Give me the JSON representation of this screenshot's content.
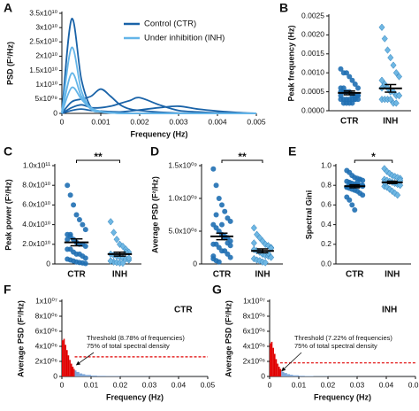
{
  "chart_data": [
    {
      "type": "line",
      "panel": "A",
      "y_label": "PSD (F²/Hz)",
      "x_label": "Frequency (Hz)",
      "legend": "upper right",
      "x": [
        0,
        0.00025,
        0.0005,
        0.00075,
        0.001,
        0.00125,
        0.0015,
        0.00175,
        0.002,
        0.0025,
        0.003,
        0.0035,
        0.004,
        0.0045,
        0.005
      ],
      "xlim": [
        0,
        0.005
      ],
      "xticks": [
        0,
        0.001,
        0.002,
        0.003,
        0.004,
        0.005
      ],
      "ylim": [
        0,
        35000000000
      ],
      "yticks": [
        0,
        {
          "value": 5000000000,
          "label": "5x10⁰⁹"
        },
        {
          "value": 10000000000,
          "label": "1x10¹⁰"
        },
        {
          "value": 15000000000,
          "label": "1.5x10¹⁰"
        },
        {
          "value": 20000000000,
          "label": "2x10¹⁰"
        },
        {
          "value": 25000000000,
          "label": "2.5x10¹⁰"
        },
        {
          "value": 30000000000,
          "label": "3x10¹⁰"
        },
        {
          "value": 35000000000,
          "label": "3.5x10¹⁰"
        }
      ],
      "series": [
        {
          "name": "Control (CTR)",
          "color": "#1a63a8",
          "values": [
            [
              0,
              33000000000,
              12000000000,
              2000000000,
              500000000,
              200000000,
              100000000,
              0,
              0,
              0,
              0,
              0,
              0,
              0,
              0
            ],
            [
              0,
              4000000000,
              5000000000,
              6000000000,
              8500000000,
              6000000000,
              3000000000,
              1500000000,
              1000000000,
              400000000,
              100000000,
              0,
              0,
              0,
              0
            ],
            [
              0,
              2000000000,
              3000000000,
              2000000000,
              2000000000,
              2500000000,
              3500000000,
              4500000000,
              5500000000,
              3000000000,
              1000000000,
              500000000,
              200000000,
              100000000,
              0
            ],
            [
              0,
              1000000000,
              1500000000,
              1000000000,
              800000000,
              600000000,
              500000000,
              800000000,
              1200000000,
              2000000000,
              2500000000,
              1500000000,
              800000000,
              300000000,
              0
            ]
          ]
        },
        {
          "name": "Under inhibition (INH)",
          "color": "#64b5e8",
          "values": [
            [
              0,
              23000000000,
              8000000000,
              1500000000,
              500000000,
              200000000,
              0,
              0,
              0,
              0,
              0,
              0,
              0,
              0,
              0
            ],
            [
              0,
              14000000000,
              6000000000,
              2000000000,
              700000000,
              300000000,
              100000000,
              0,
              0,
              0,
              0,
              0,
              0,
              0,
              0
            ],
            [
              0,
              9000000000,
              5000000000,
              1500000000,
              600000000,
              200000000,
              0,
              0,
              0,
              0,
              0,
              0,
              0,
              0,
              0
            ]
          ]
        }
      ]
    },
    {
      "type": "strip",
      "panel": "B",
      "y_label": "Peak frequency (Hz)",
      "ylim": [
        0,
        0.0025
      ],
      "yticks": [
        {
          "value": 0,
          "label": "0.0000"
        },
        {
          "value": 0.0005,
          "label": "0.0005"
        },
        {
          "value": 0.001,
          "label": "0.0010"
        },
        {
          "value": 0.0015,
          "label": "0.0015"
        },
        {
          "value": 0.002,
          "label": "0.0020"
        },
        {
          "value": 0.0025,
          "label": "0.0025"
        }
      ],
      "groups": [
        {
          "name": "CTR",
          "color": "#1f6fb2",
          "marker": "circle",
          "mean": 0.00047,
          "sem": 5e-05,
          "values": [
            0.0011,
            0.001,
            0.001,
            0.0009,
            0.0008,
            0.0007,
            0.0006,
            0.0006,
            0.0005,
            0.0005,
            0.0005,
            0.0004,
            0.0004,
            0.0004,
            0.0004,
            0.0003,
            0.0003,
            0.0003,
            0.0003,
            0.0003,
            0.0003,
            0.0003,
            0.0002,
            0.0002,
            0.0002,
            0.0002,
            0.0003,
            0.0004,
            0.0005,
            0.0006
          ]
        },
        {
          "name": "INH",
          "color": "#6fb7e3",
          "marker": "diamond",
          "mean": 0.00059,
          "sem": 0.0001,
          "values": [
            0.0022,
            0.0019,
            0.0016,
            0.0014,
            0.0012,
            0.001,
            0.0009,
            0.0008,
            0.0007,
            0.0006,
            0.0005,
            0.0005,
            0.0004,
            0.0004,
            0.0003,
            0.0003,
            0.0003,
            0.0003,
            0.0002,
            0.0002,
            0.0004,
            0.0006
          ]
        }
      ]
    },
    {
      "type": "strip",
      "panel": "C",
      "y_label": "Peak power (F²/Hz)",
      "significance": "**",
      "ylim": [
        0,
        100000000000
      ],
      "yticks": [
        0,
        {
          "value": 20000000000,
          "label": "2.0x10¹⁰"
        },
        {
          "value": 40000000000,
          "label": "4.0x10¹⁰"
        },
        {
          "value": 60000000000,
          "label": "6.0x10¹⁰"
        },
        {
          "value": 80000000000,
          "label": "8.0x10¹⁰"
        },
        {
          "value": 100000000000,
          "label": "1.0x10¹¹"
        }
      ],
      "groups": [
        {
          "name": "CTR",
          "color": "#1f6fb2",
          "marker": "circle",
          "mean": 22000000000,
          "sem": 3500000000,
          "values": [
            80000000000,
            70000000000,
            60000000000,
            50000000000,
            45000000000,
            40000000000,
            35000000000,
            30000000000,
            30000000000,
            25000000000,
            22000000000,
            20000000000,
            20000000000,
            18000000000,
            15000000000,
            15000000000,
            12000000000,
            10000000000,
            10000000000,
            8000000000,
            6000000000,
            5000000000,
            4000000000,
            3000000000,
            2000000000,
            1500000000,
            1000000000,
            500000000,
            25000000000,
            28000000000
          ]
        },
        {
          "name": "INH",
          "color": "#6fb7e3",
          "marker": "diamond",
          "mean": 10000000000,
          "sem": 2000000000,
          "values": [
            43000000000,
            32000000000,
            25000000000,
            20000000000,
            18000000000,
            15000000000,
            12000000000,
            10000000000,
            9000000000,
            8000000000,
            7000000000,
            6000000000,
            5000000000,
            4000000000,
            3000000000,
            2000000000,
            1500000000,
            1000000000,
            800000000,
            12000000000,
            6000000000,
            3000000000
          ]
        }
      ]
    },
    {
      "type": "strip",
      "panel": "D",
      "y_label": "Average PSD (F²/Hz)",
      "significance": "**",
      "ylim": [
        0,
        1500000000
      ],
      "yticks": [
        0,
        {
          "value": 500000000,
          "label": "5.0x10⁰⁸"
        },
        {
          "value": 1000000000,
          "label": "1.0x10⁰⁹"
        },
        {
          "value": 1500000000,
          "label": "1.5x10⁰⁹"
        }
      ],
      "groups": [
        {
          "name": "CTR",
          "color": "#1f6fb2",
          "marker": "circle",
          "mean": 420000000,
          "sem": 50000000,
          "values": [
            1450000000,
            1200000000,
            1000000000,
            900000000,
            800000000,
            700000000,
            650000000,
            600000000,
            550000000,
            500000000,
            450000000,
            400000000,
            400000000,
            350000000,
            300000000,
            300000000,
            250000000,
            200000000,
            200000000,
            150000000,
            100000000,
            80000000,
            50000000,
            30000000,
            600000000,
            420000000,
            320000000,
            280000000,
            120000000,
            750000000
          ]
        },
        {
          "name": "INH",
          "color": "#6fb7e3",
          "marker": "diamond",
          "mean": 200000000,
          "sem": 30000000,
          "values": [
            550000000,
            450000000,
            400000000,
            350000000,
            300000000,
            280000000,
            250000000,
            220000000,
            200000000,
            180000000,
            150000000,
            130000000,
            120000000,
            100000000,
            80000000,
            60000000,
            50000000,
            30000000,
            20000000,
            160000000,
            240000000,
            320000000
          ]
        }
      ]
    },
    {
      "type": "strip",
      "panel": "E",
      "y_label": "Spectral Gini",
      "significance": "*",
      "ylim": [
        0,
        1
      ],
      "yticks": [
        {
          "value": 0,
          "label": "0.0"
        },
        0.2,
        0.4,
        0.6,
        0.8,
        {
          "value": 1,
          "label": "1.0"
        }
      ],
      "groups": [
        {
          "name": "CTR",
          "color": "#1f6fb2",
          "marker": "circle",
          "mean": 0.79,
          "sem": 0.015,
          "values": [
            0.95,
            0.93,
            0.9,
            0.88,
            0.87,
            0.86,
            0.85,
            0.84,
            0.83,
            0.82,
            0.81,
            0.8,
            0.8,
            0.79,
            0.78,
            0.77,
            0.76,
            0.75,
            0.74,
            0.72,
            0.7,
            0.68,
            0.65,
            0.6,
            0.55,
            0.83,
            0.86,
            0.8,
            0.78,
            0.82
          ]
        },
        {
          "name": "INH",
          "color": "#6fb7e3",
          "marker": "diamond",
          "mean": 0.83,
          "sem": 0.012,
          "values": [
            0.97,
            0.94,
            0.92,
            0.9,
            0.89,
            0.88,
            0.87,
            0.86,
            0.85,
            0.84,
            0.83,
            0.82,
            0.81,
            0.8,
            0.79,
            0.78,
            0.76,
            0.74,
            0.72,
            0.7,
            0.85,
            0.83
          ]
        }
      ]
    },
    {
      "type": "spectrum",
      "panel": "F",
      "label": "CTR",
      "y_label": "Average PSD (F²/Hz)",
      "x_label": "Frequency (Hz)",
      "annotation": [
        "Threshold (8.78% of frequencies)",
        "75% of total spectral density"
      ],
      "threshold_x": 0.0044,
      "threshold_y": 2600000,
      "colors": [
        "#e00000",
        "#7ea6d8"
      ],
      "threshold_color": "#e00000",
      "xlim": [
        0,
        0.05
      ],
      "xticks": [
        0,
        0.01,
        0.02,
        0.03,
        0.04,
        0.05
      ],
      "ylim": [
        0,
        10000000
      ],
      "yticks": [
        0,
        {
          "value": 2000000,
          "label": "2x10⁰⁶"
        },
        {
          "value": 4000000,
          "label": "4x10⁰⁶"
        },
        {
          "value": 6000000,
          "label": "6x10⁰⁶"
        },
        {
          "value": 8000000,
          "label": "8x10⁰⁶"
        },
        {
          "value": 10000000,
          "label": "1x10⁰⁷"
        }
      ],
      "x": [
        0,
        0.0005,
        0.001,
        0.0015,
        0.002,
        0.0025,
        0.003,
        0.0035,
        0.004,
        0.0044,
        0.005,
        0.006,
        0.007,
        0.008,
        0.01,
        0.012,
        0.015,
        0.02,
        0.03,
        0.04,
        0.05
      ],
      "values": [
        4800000,
        5000000,
        4200000,
        3500000,
        2800000,
        2200000,
        1700000,
        1300000,
        1000000,
        800000,
        600000,
        400000,
        300000,
        200000,
        120000,
        80000,
        50000,
        30000,
        15000,
        8000,
        5000
      ]
    },
    {
      "type": "spectrum",
      "panel": "G",
      "label": "INH",
      "y_label": "Average PSD (F²/Hz)",
      "x_label": "Frequency (Hz)",
      "annotation": [
        "Threshold (7.22% of frequencies)",
        "75% of total spectral density"
      ],
      "threshold_x": 0.0036,
      "threshold_y": 1800000,
      "colors": [
        "#e00000",
        "#7ea6d8"
      ],
      "threshold_color": "#e00000",
      "xlim": [
        0,
        0.05
      ],
      "xticks": [
        0,
        0.01,
        0.02,
        0.03,
        0.04,
        0.05
      ],
      "ylim": [
        0,
        10000000
      ],
      "yticks": [
        0,
        {
          "value": 2000000,
          "label": "2x10⁰⁶"
        },
        {
          "value": 4000000,
          "label": "4x10⁰⁶"
        },
        {
          "value": 6000000,
          "label": "6x10⁰⁶"
        },
        {
          "value": 8000000,
          "label": "8x10⁰⁶"
        },
        {
          "value": 10000000,
          "label": "1x10⁰⁷"
        }
      ],
      "x": [
        0,
        0.0005,
        0.001,
        0.0015,
        0.002,
        0.0025,
        0.003,
        0.0035,
        0.004,
        0.0044,
        0.005,
        0.006,
        0.007,
        0.008,
        0.01,
        0.012,
        0.015,
        0.02,
        0.03,
        0.04,
        0.05
      ],
      "values": [
        4400000,
        4600000,
        3800000,
        3000000,
        2300000,
        1700000,
        1300000,
        1000000,
        750000,
        600000,
        450000,
        300000,
        220000,
        150000,
        90000,
        60000,
        40000,
        25000,
        12000,
        6000,
        4000
      ]
    }
  ]
}
